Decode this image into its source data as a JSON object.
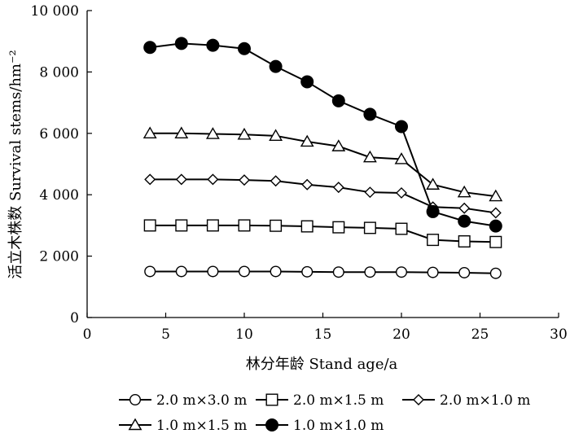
{
  "chart_data": {
    "type": "line",
    "xlabel": "林分年龄  Stand age/a",
    "ylabel": "活立木株数  Survival stems/hm⁻²",
    "xlim": [
      0,
      30
    ],
    "ylim": [
      0,
      10000
    ],
    "xticks": [
      0,
      5,
      10,
      15,
      20,
      25,
      30
    ],
    "xtick_labels": [
      "0",
      "5",
      "10",
      "15",
      "20",
      "25",
      "30"
    ],
    "yticks": [
      0,
      2000,
      4000,
      6000,
      8000,
      10000
    ],
    "ytick_labels": [
      "0",
      "2 000",
      "4 000",
      "6 000",
      "8 000",
      "10 000"
    ],
    "grid": false,
    "legend_position": "bottom",
    "x": [
      4,
      6,
      8,
      10,
      12,
      14,
      16,
      18,
      20,
      22,
      24,
      26
    ],
    "series": [
      {
        "name": "2.0 m×3.0 m",
        "marker": "circle-open",
        "values": [
          1500,
          1500,
          1500,
          1500,
          1500,
          1490,
          1480,
          1480,
          1480,
          1470,
          1460,
          1440
        ]
      },
      {
        "name": "2.0 m×1.5 m",
        "marker": "square-open",
        "values": [
          3000,
          3000,
          3000,
          3000,
          2990,
          2970,
          2940,
          2920,
          2890,
          2530,
          2480,
          2460
        ]
      },
      {
        "name": "2.0 m×1.0 m",
        "marker": "diamond-open",
        "values": [
          4500,
          4500,
          4500,
          4480,
          4450,
          4330,
          4240,
          4080,
          4060,
          3600,
          3560,
          3410
        ]
      },
      {
        "name": "1.0 m×1.5 m",
        "marker": "triangle-open",
        "values": [
          6000,
          6000,
          5980,
          5960,
          5920,
          5730,
          5580,
          5220,
          5160,
          4330,
          4080,
          3950
        ]
      },
      {
        "name": "1.0 m×1.0 m",
        "marker": "circle-filled",
        "values": [
          8800,
          8930,
          8870,
          8760,
          8180,
          7680,
          7060,
          6620,
          6220,
          3450,
          3140,
          2980
        ]
      }
    ]
  }
}
